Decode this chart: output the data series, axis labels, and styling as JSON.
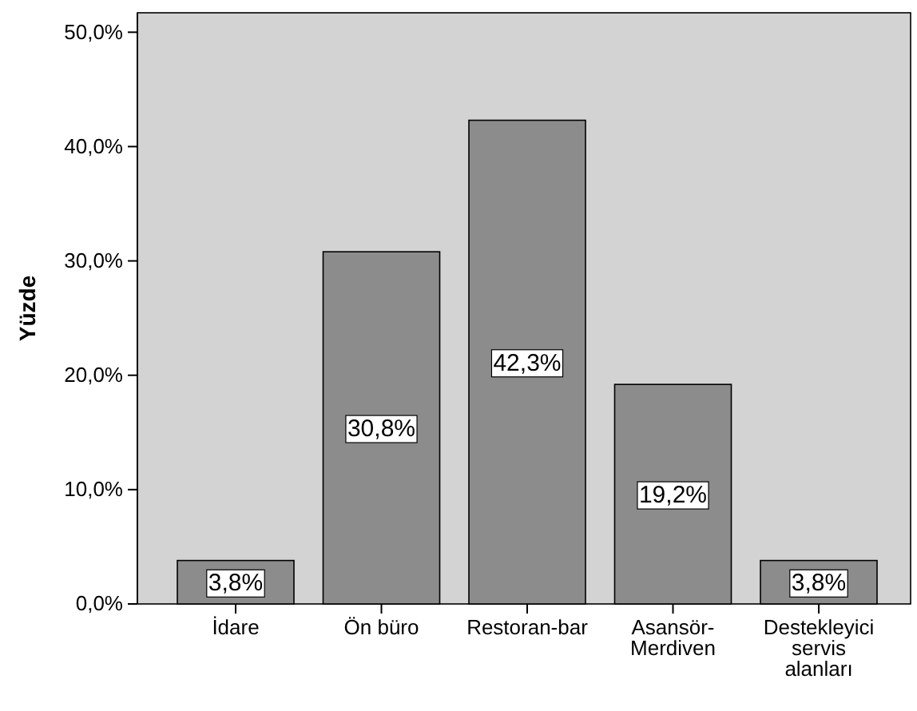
{
  "chart_data": {
    "type": "bar",
    "ylabel": "Yüzde",
    "categories": [
      "İdare",
      "Ön büro",
      "Restoran-bar",
      "Asansör-\nMerdiven",
      "Destekleyici\nservis\nalanları"
    ],
    "values": [
      3.8,
      30.8,
      42.3,
      19.2,
      3.8
    ],
    "value_labels": [
      "3,8%",
      "30,8%",
      "42,3%",
      "19,2%",
      "3,8%"
    ],
    "color": "#8c8c8c",
    "ylim": [
      0,
      51.7
    ],
    "yticks": [
      {
        "value": 0,
        "label": "0,0%"
      },
      {
        "value": 10,
        "label": "10,0%"
      },
      {
        "value": 20,
        "label": "20,0%"
      },
      {
        "value": 30,
        "label": "30,0%"
      },
      {
        "value": 40,
        "label": "40,0%"
      },
      {
        "value": 50,
        "label": "50,0%"
      }
    ],
    "grid": false
  }
}
